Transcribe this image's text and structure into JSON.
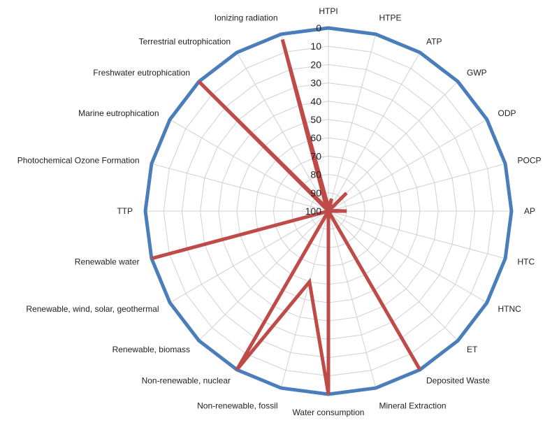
{
  "chart_data": {
    "type": "radar",
    "axes": [
      "HTPI",
      "HTPE",
      "ATP",
      "GWP",
      "ODP",
      "POCP",
      "AP",
      "HTC",
      "HTNC",
      "ET",
      "Deposited Waste",
      "Mineral Extraction",
      "Water consumption",
      "Non-renewable, fossil",
      "Non-renewable, nuclear",
      "Renewable, biomass",
      "Renewable, wind, solar, geothermal",
      "Renewable water",
      "TTP",
      "Photochemical Ozone Formation",
      "Marine eutrophication",
      "Freshwater eutrophication",
      "Terrestrial eutrophication",
      "Ionizing radiation"
    ],
    "radial_ticks": [
      0,
      10,
      20,
      30,
      40,
      50,
      60,
      70,
      80,
      90,
      100
    ],
    "radial_range": [
      100,
      0
    ],
    "radial_reversed": true,
    "grid": true,
    "series": [
      {
        "color": "#4a7ebb",
        "values": [
          0,
          0,
          0,
          0,
          0,
          0,
          0,
          0,
          0,
          0,
          0,
          0,
          0,
          0,
          0,
          0,
          0,
          0,
          0,
          0,
          0,
          0,
          0,
          0
        ]
      },
      {
        "color": "#be4b48",
        "values": [
          98,
          93,
          100,
          86,
          100,
          99,
          90,
          100,
          100,
          100,
          0,
          100,
          0,
          60,
          0,
          100,
          100,
          0,
          100,
          100,
          100,
          0,
          98,
          3
        ]
      }
    ]
  }
}
